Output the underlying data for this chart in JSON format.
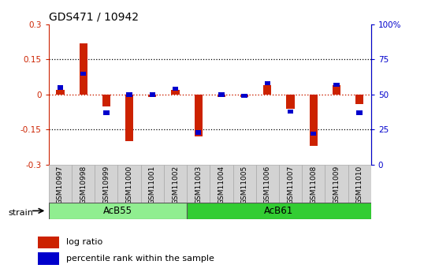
{
  "title": "GDS471 / 10942",
  "samples": [
    "GSM10997",
    "GSM10998",
    "GSM10999",
    "GSM11000",
    "GSM11001",
    "GSM11002",
    "GSM11003",
    "GSM11004",
    "GSM11005",
    "GSM11006",
    "GSM11007",
    "GSM11008",
    "GSM11009",
    "GSM11010"
  ],
  "log_ratio": [
    0.02,
    0.22,
    -0.05,
    -0.2,
    -0.01,
    0.02,
    -0.18,
    -0.01,
    -0.01,
    0.04,
    -0.06,
    -0.22,
    0.04,
    -0.04
  ],
  "percentile_rank": [
    55,
    65,
    37,
    50,
    50,
    54,
    23,
    50,
    49,
    58,
    38,
    22,
    57,
    37
  ],
  "groups": [
    {
      "label": "AcB55",
      "start": 0,
      "end": 6,
      "color": "#90EE90"
    },
    {
      "label": "AcB61",
      "start": 6,
      "end": 14,
      "color": "#32CD32"
    }
  ],
  "strain_label": "strain",
  "ylim_left": [
    -0.3,
    0.3
  ],
  "ylim_right": [
    0,
    100
  ],
  "yticks_left": [
    -0.3,
    -0.15,
    0.0,
    0.15,
    0.3
  ],
  "yticks_right": [
    0,
    25,
    50,
    75,
    100
  ],
  "ytick_labels_left": [
    "-0.3",
    "-0.15",
    "0",
    "0.15",
    "0.3"
  ],
  "ytick_labels_right": [
    "0",
    "25",
    "50",
    "75",
    "100%"
  ],
  "hlines": [
    0.15,
    -0.15
  ],
  "bar_color_red": "#CC2200",
  "bar_color_blue": "#0000CC",
  "zero_line_color": "#CC2200",
  "dotted_line_color": "#000000",
  "label_bg": "#D3D3D3",
  "legend_items": [
    "log ratio",
    "percentile rank within the sample"
  ]
}
